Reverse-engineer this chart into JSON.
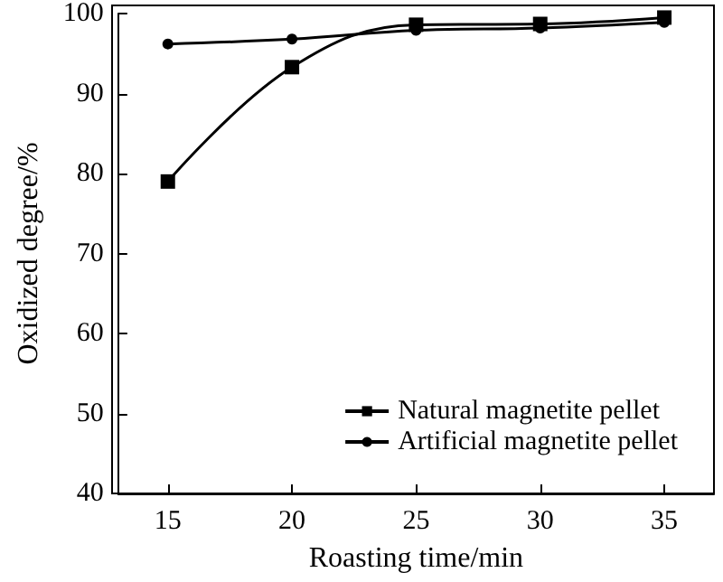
{
  "chart_data": {
    "type": "line",
    "xlabel": "Roasting time/min",
    "ylabel": "Oxidized degree/%",
    "x": [
      15,
      20,
      25,
      30,
      35
    ],
    "series": [
      {
        "name": "Natural magnetite pellet",
        "color": "#000000",
        "marker": "square",
        "values": [
          79,
          93.3,
          98.6,
          98.7,
          99.5
        ]
      },
      {
        "name": "Artificial magnetite pellet",
        "color": "#000000",
        "marker": "circle",
        "values": [
          96.2,
          96.8,
          97.9,
          98.2,
          98.9
        ]
      }
    ],
    "xlim": [
      13,
      37
    ],
    "xticks": [
      15,
      20,
      25,
      30,
      35
    ],
    "ylim": [
      40,
      100
    ],
    "yticks": [
      40,
      50,
      60,
      70,
      80,
      90,
      100
    ],
    "grid": false,
    "legend": "bottom right",
    "line_style": "solid"
  }
}
